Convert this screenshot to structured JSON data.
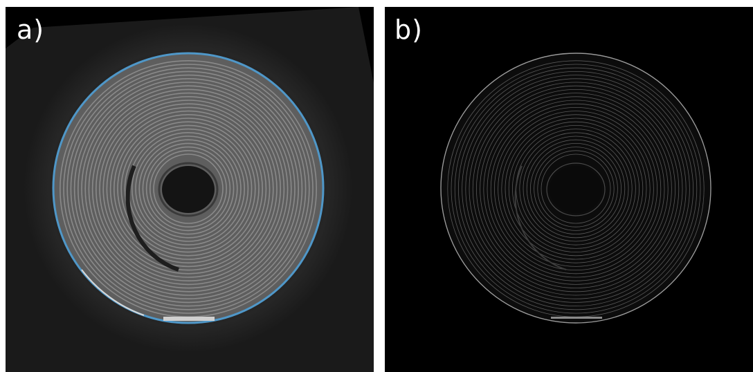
{
  "panels": [
    {
      "label": "a)",
      "background_color": "#1a1a1a",
      "ring_color": "#8a8a8a",
      "outline_color": "#4f97c8"
    },
    {
      "label": "b)",
      "background_color": "#000000",
      "ring_color": "#5a5a5a"
    }
  ]
}
